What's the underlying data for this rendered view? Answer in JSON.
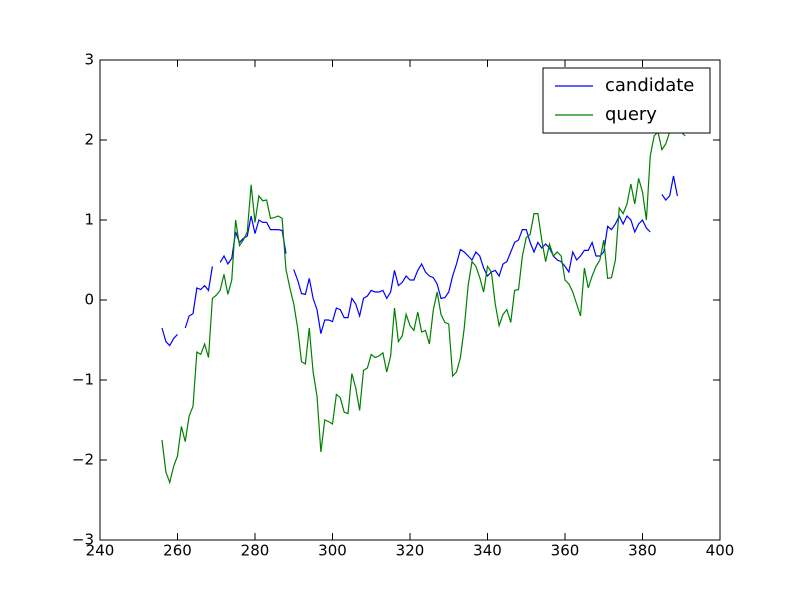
{
  "chart_data": {
    "type": "line",
    "x": [
      256,
      257,
      258,
      259,
      260,
      261,
      262,
      263,
      264,
      265,
      266,
      267,
      268,
      269,
      270,
      271,
      272,
      273,
      274,
      275,
      276,
      277,
      278,
      279,
      280,
      281,
      282,
      283,
      284,
      285,
      286,
      287,
      288,
      289,
      290,
      291,
      292,
      293,
      294,
      295,
      296,
      297,
      298,
      299,
      300,
      301,
      302,
      303,
      304,
      305,
      306,
      307,
      308,
      309,
      310,
      311,
      312,
      313,
      314,
      315,
      316,
      317,
      318,
      319,
      320,
      321,
      322,
      323,
      324,
      325,
      326,
      327,
      328,
      329,
      330,
      331,
      332,
      333,
      334,
      335,
      336,
      337,
      338,
      339,
      340,
      341,
      342,
      343,
      344,
      345,
      346,
      347,
      348,
      349,
      350,
      351,
      352,
      353,
      354,
      355,
      356,
      357,
      358,
      359,
      360,
      361,
      362,
      363,
      364,
      365,
      366,
      367,
      368,
      369,
      370,
      371,
      372,
      373,
      374,
      375,
      376,
      377,
      378,
      379,
      380,
      381,
      382,
      383,
      384,
      385,
      386,
      387,
      388,
      389,
      390,
      391
    ],
    "series": [
      {
        "name": "candidate",
        "color": "#0000ff",
        "values": [
          -0.35,
          -0.52,
          -0.57,
          -0.48,
          -0.43,
          null,
          -0.35,
          -0.2,
          -0.17,
          0.15,
          0.13,
          0.18,
          0.12,
          0.42,
          null,
          0.47,
          0.55,
          0.45,
          0.52,
          0.85,
          0.72,
          0.77,
          0.8,
          1.05,
          0.83,
          1.0,
          0.97,
          0.97,
          0.88,
          0.88,
          0.88,
          0.87,
          0.58,
          null,
          0.38,
          0.25,
          0.08,
          0.07,
          0.27,
          0.02,
          -0.12,
          -0.42,
          -0.25,
          -0.25,
          -0.27,
          -0.1,
          -0.12,
          -0.22,
          -0.22,
          0.02,
          -0.05,
          -0.2,
          0.02,
          0.05,
          0.12,
          0.1,
          0.1,
          0.12,
          0.02,
          0.1,
          0.37,
          0.18,
          0.22,
          0.3,
          0.25,
          0.25,
          0.37,
          0.45,
          0.35,
          0.3,
          0.28,
          0.2,
          0.02,
          0.03,
          0.1,
          0.3,
          0.45,
          0.63,
          0.6,
          0.55,
          0.5,
          0.6,
          0.55,
          0.4,
          0.3,
          0.35,
          0.37,
          0.3,
          0.45,
          0.48,
          0.6,
          0.72,
          0.75,
          0.88,
          0.88,
          0.72,
          0.6,
          0.72,
          0.65,
          0.7,
          0.65,
          0.55,
          0.5,
          0.48,
          0.42,
          0.35,
          0.6,
          0.5,
          0.55,
          0.62,
          0.62,
          0.72,
          0.55,
          0.55,
          0.6,
          0.92,
          0.88,
          0.95,
          1.05,
          0.95,
          1.05,
          1.0,
          0.85,
          0.95,
          1.0,
          0.9,
          0.85,
          null,
          null,
          1.32,
          1.25,
          1.3,
          1.55,
          1.3,
          null,
          null
        ]
      },
      {
        "name": "query",
        "color": "#008000",
        "values": [
          -1.75,
          -2.15,
          -2.28,
          -2.08,
          -1.95,
          -1.58,
          -1.77,
          -1.45,
          -1.33,
          -0.65,
          -0.68,
          -0.55,
          -0.72,
          0.02,
          0.06,
          0.12,
          0.32,
          0.07,
          0.25,
          1.0,
          0.68,
          0.75,
          0.85,
          1.44,
          0.97,
          1.3,
          1.24,
          1.25,
          1.02,
          1.03,
          1.05,
          1.02,
          0.38,
          0.15,
          -0.05,
          -0.35,
          -0.77,
          -0.8,
          -0.35,
          -0.9,
          -1.2,
          -1.9,
          -1.5,
          -1.52,
          -1.55,
          -1.18,
          -1.22,
          -1.4,
          -1.42,
          -0.92,
          -1.1,
          -1.38,
          -0.88,
          -0.85,
          -0.68,
          -0.72,
          -0.7,
          -0.66,
          -0.9,
          -0.7,
          -0.1,
          -0.52,
          -0.45,
          -0.18,
          -0.32,
          -0.38,
          -0.15,
          -0.4,
          -0.38,
          -0.55,
          -0.13,
          0.1,
          -0.18,
          -0.28,
          -0.3,
          -0.95,
          -0.9,
          -0.72,
          -0.35,
          0.18,
          0.48,
          0.42,
          0.28,
          0.1,
          0.42,
          0.35,
          -0.05,
          -0.32,
          -0.18,
          -0.12,
          -0.28,
          0.12,
          0.13,
          0.55,
          0.78,
          0.82,
          1.08,
          1.08,
          0.75,
          0.48,
          0.7,
          0.55,
          0.6,
          0.55,
          0.25,
          0.2,
          0.1,
          -0.05,
          -0.2,
          0.4,
          0.15,
          0.3,
          0.42,
          0.5,
          0.75,
          0.27,
          0.28,
          0.5,
          1.15,
          1.08,
          1.2,
          1.45,
          1.2,
          1.52,
          1.35,
          1.0,
          1.8,
          2.05,
          2.1,
          1.88,
          1.95,
          2.1,
          2.3,
          2.2,
          2.1,
          2.05
        ]
      }
    ],
    "xlim": [
      240,
      400
    ],
    "xticks": [
      240,
      260,
      280,
      300,
      320,
      340,
      360,
      380,
      400
    ],
    "ylim": [
      -3,
      3
    ],
    "yticks": [
      {
        "value": -3,
        "label": "−3"
      },
      {
        "value": -2,
        "label": "−2"
      },
      {
        "value": -1,
        "label": "−1"
      },
      0,
      1,
      2,
      3
    ],
    "legend": "upper right"
  }
}
